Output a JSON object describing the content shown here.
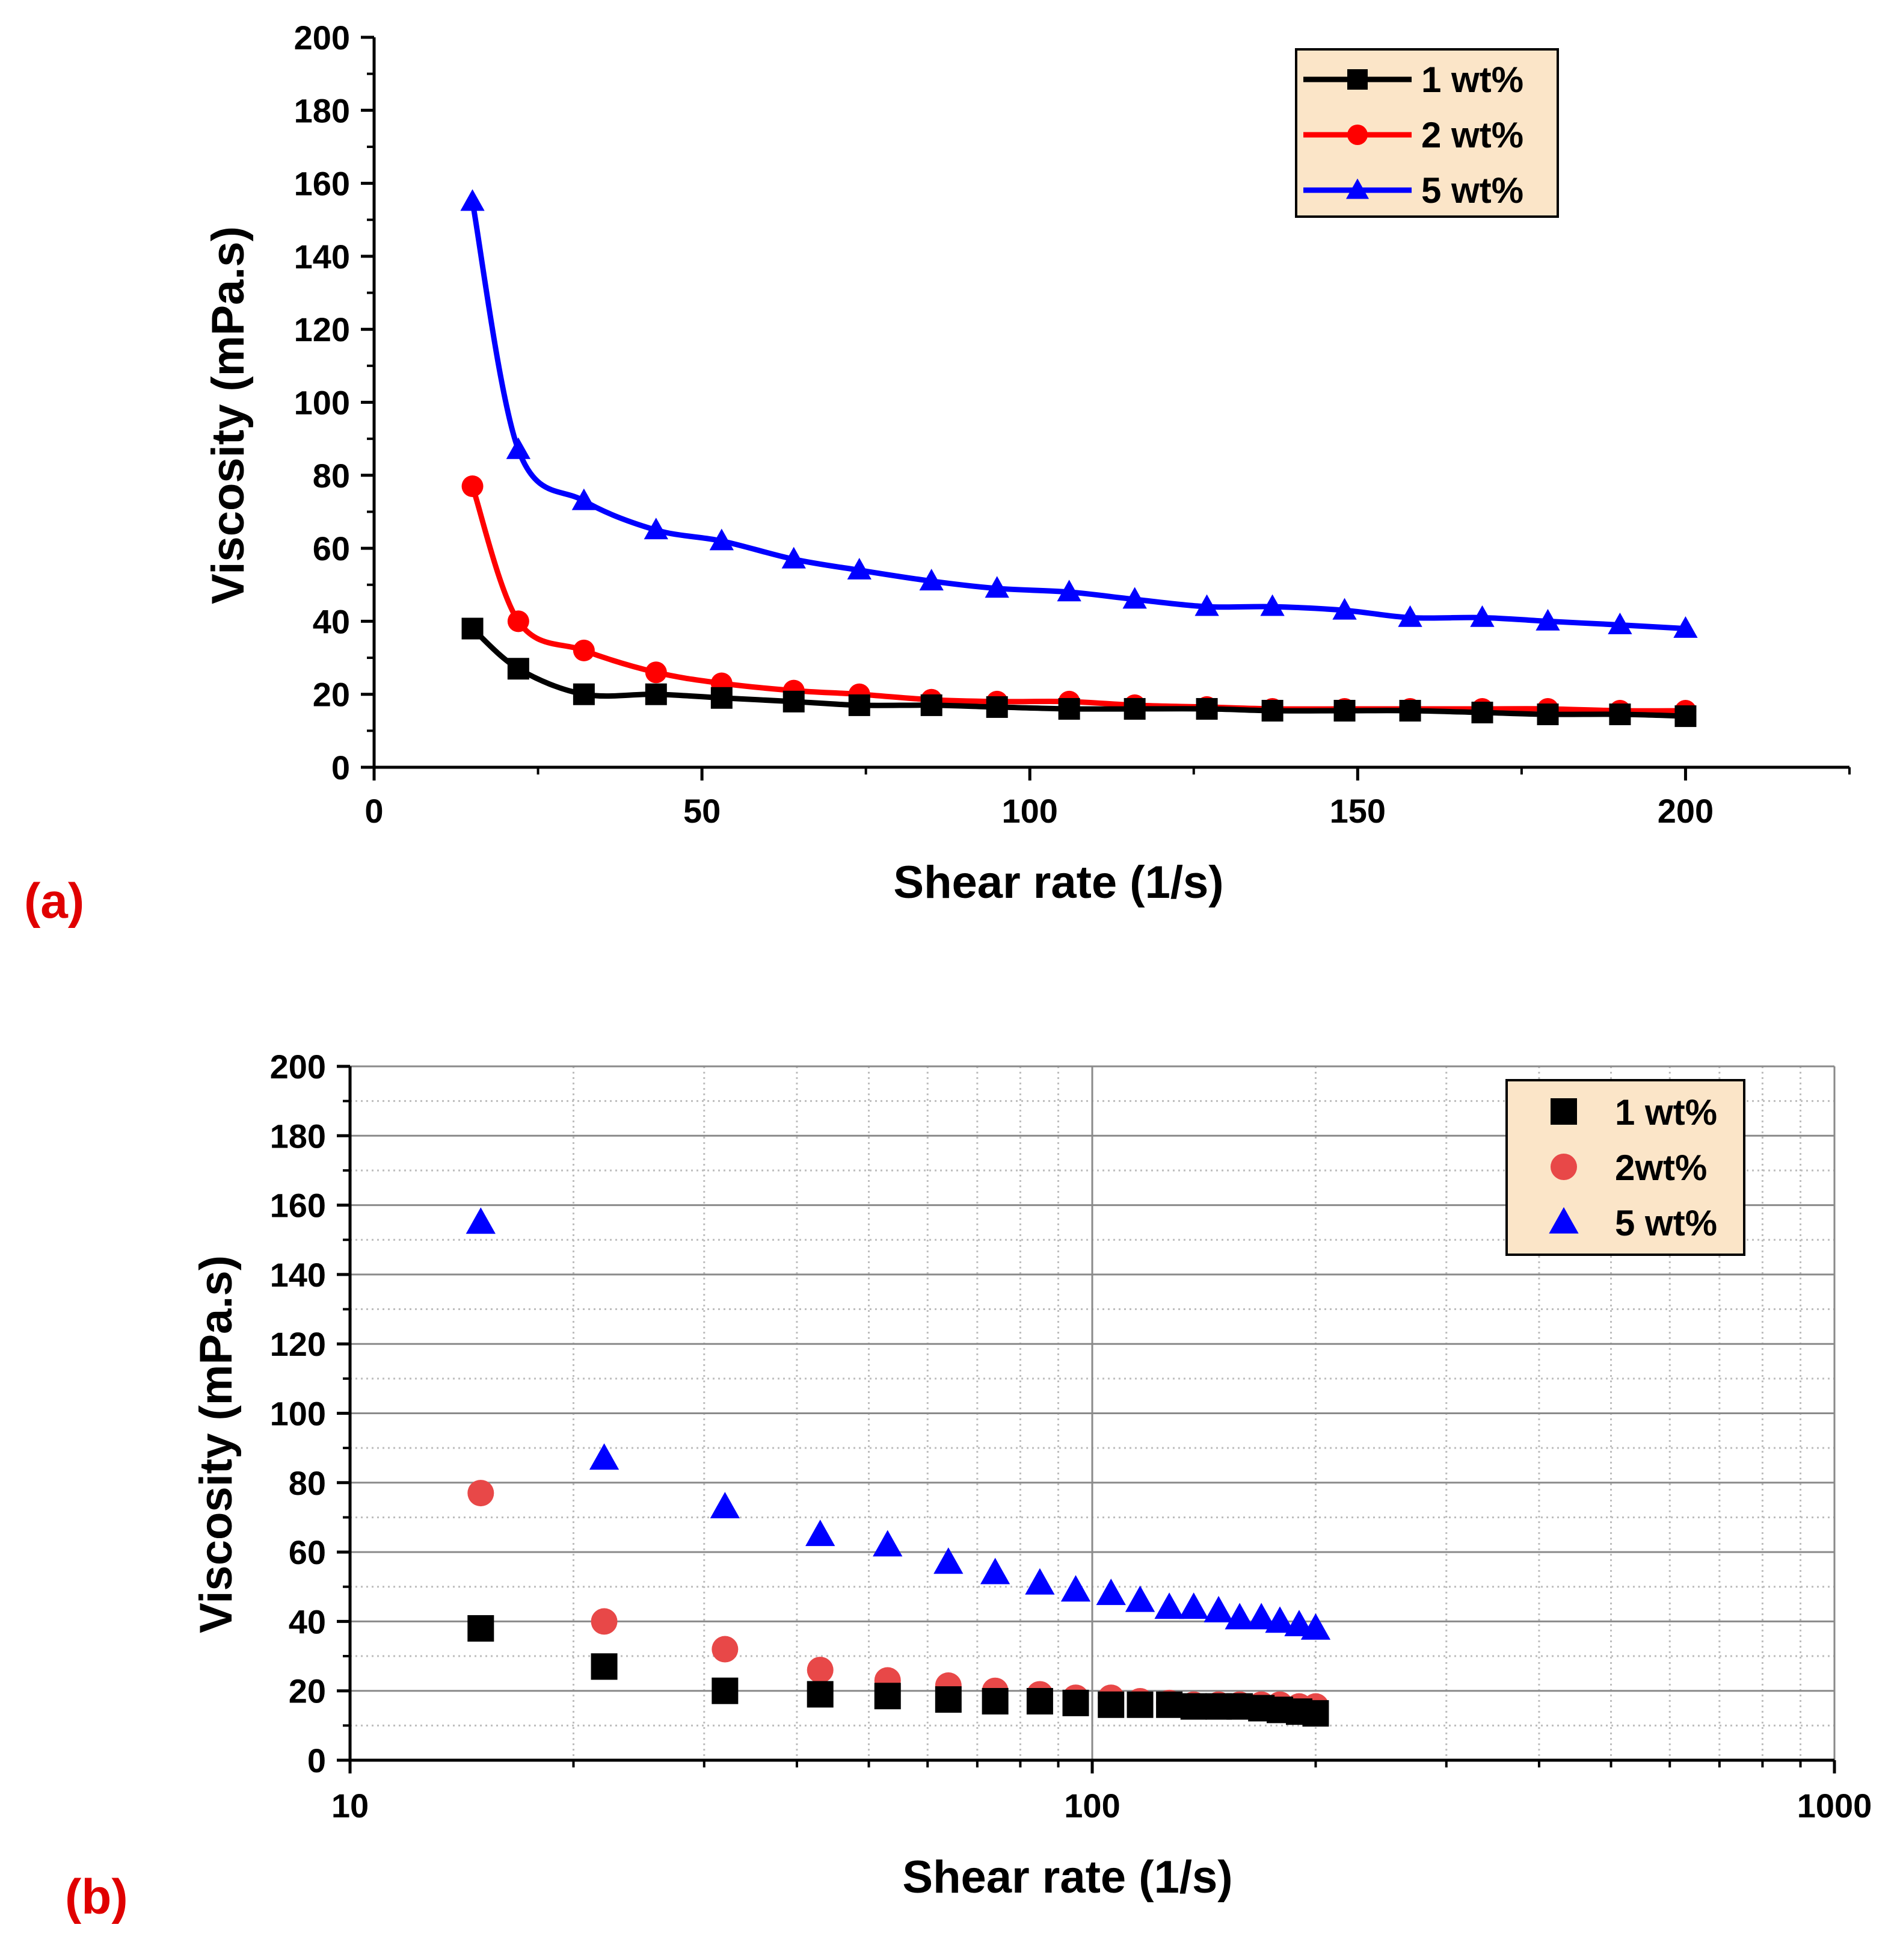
{
  "panels": [
    {
      "label": "(a)"
    },
    {
      "label": "(b)"
    }
  ],
  "chart_data": [
    {
      "type": "line",
      "xlabel": "Shear rate (1/s)",
      "ylabel": "Viscosity (mPa.s)",
      "xlim": [
        0,
        225
      ],
      "ylim": [
        0,
        200
      ],
      "xticks": [
        0,
        50,
        100,
        150,
        200
      ],
      "yticks": [
        0,
        20,
        40,
        60,
        80,
        100,
        120,
        140,
        160,
        180,
        200
      ],
      "grid": false,
      "legend_position": "top-right",
      "x": [
        15,
        22,
        32,
        43,
        53,
        64,
        74,
        85,
        95,
        106,
        116,
        127,
        137,
        148,
        158,
        169,
        179,
        190,
        200
      ],
      "series": [
        {
          "name": "1 wt%",
          "color": "#000000",
          "marker": "square",
          "values": [
            38,
            27,
            20,
            20,
            19,
            18,
            17,
            17,
            16.5,
            16,
            16,
            16,
            15.5,
            15.5,
            15.5,
            15,
            14.5,
            14.5,
            14
          ]
        },
        {
          "name": "2 wt%",
          "color": "#ff0000",
          "marker": "circle",
          "values": [
            77,
            40,
            32,
            26,
            23,
            21,
            20,
            18.5,
            18,
            18,
            17,
            16.5,
            16,
            16,
            16,
            16,
            16,
            15.5,
            15.5
          ]
        },
        {
          "name": "5 wt%",
          "color": "#0000ff",
          "marker": "triangle",
          "values": [
            155,
            87,
            73,
            65,
            62,
            57,
            54,
            51,
            49,
            48,
            46,
            44,
            44,
            43,
            41,
            41,
            40,
            39,
            38
          ]
        }
      ]
    },
    {
      "type": "scatter",
      "xlabel": "Shear rate (1/s)",
      "ylabel": "Viscosity (mPa.s)",
      "xscale": "log",
      "xlim": [
        10,
        1000
      ],
      "ylim": [
        0,
        200
      ],
      "xticks": [
        10,
        100,
        1000
      ],
      "yticks": [
        0,
        20,
        40,
        60,
        80,
        100,
        120,
        140,
        160,
        180,
        200
      ],
      "grid": true,
      "legend_position": "top-right",
      "x": [
        15,
        22,
        32,
        43,
        53,
        64,
        74,
        85,
        95,
        106,
        116,
        127,
        137,
        148,
        158,
        169,
        179,
        190,
        200
      ],
      "series": [
        {
          "name": "1 wt%",
          "color": "#000000",
          "marker": "square",
          "values": [
            38,
            27,
            20,
            19,
            18.5,
            17.5,
            17,
            17,
            16.5,
            16,
            16,
            16,
            15.5,
            15.5,
            15.5,
            15,
            14.5,
            14,
            13.5
          ]
        },
        {
          "name": "2wt%",
          "color": "#e84848",
          "marker": "circle",
          "values": [
            77,
            40,
            32,
            26,
            23,
            21.5,
            20,
            19,
            18,
            18,
            17,
            16.5,
            16,
            16,
            16,
            16,
            16,
            15.5,
            15.5
          ]
        },
        {
          "name": "5 wt%",
          "color": "#0000ff",
          "marker": "triangle",
          "values": [
            155,
            87,
            73,
            65,
            62,
            57,
            54,
            51,
            49,
            48,
            46,
            44,
            44,
            43,
            41,
            41,
            40,
            39,
            38
          ]
        }
      ]
    }
  ]
}
